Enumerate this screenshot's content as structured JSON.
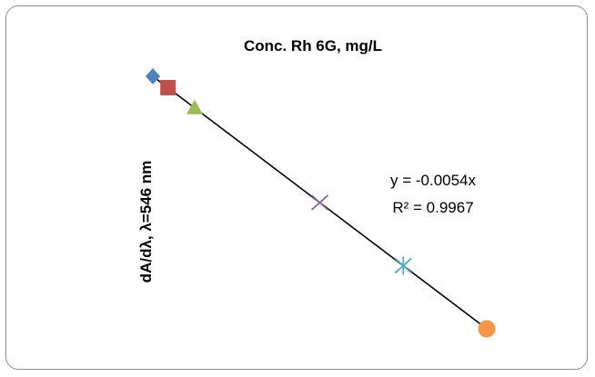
{
  "chart_data": {
    "type": "scatter",
    "title": "Conc. Rh 6G, mg/L",
    "xlabel": "",
    "ylabel": "dA/dλ, λ=546 nm",
    "axes_visible": false,
    "grid": false,
    "legend": "none",
    "series": [
      {
        "values": [
          {
            "x": 0,
            "y": 0
          }
        ],
        "marker": "diamond",
        "color": "#4f81bd"
      },
      {
        "values": [
          {
            "x": 1,
            "y": -0.0054
          }
        ],
        "marker": "square",
        "color": "#c0504d"
      },
      {
        "values": [
          {
            "x": 5,
            "y": -0.027
          }
        ],
        "marker": "triangle",
        "color": "#9bbb59"
      },
      {
        "values": [
          {
            "x": 20,
            "y": -0.108
          }
        ],
        "marker": "x",
        "color": "#8064a2"
      },
      {
        "values": [
          {
            "x": 30,
            "y": -0.162
          }
        ],
        "marker": "star",
        "color": "#4bacc6"
      },
      {
        "values": [
          {
            "x": 40,
            "y": -0.216
          }
        ],
        "marker": "circle",
        "color": "#f79646"
      }
    ],
    "trendline": {
      "type": "linear",
      "slope": -0.0054,
      "intercept": 0,
      "equation": "y = -0.0054x",
      "r_squared": "R² = 0.9967",
      "color": "#000000"
    },
    "xlim": [
      0,
      40
    ],
    "ylim": [
      -0.216,
      0
    ]
  }
}
